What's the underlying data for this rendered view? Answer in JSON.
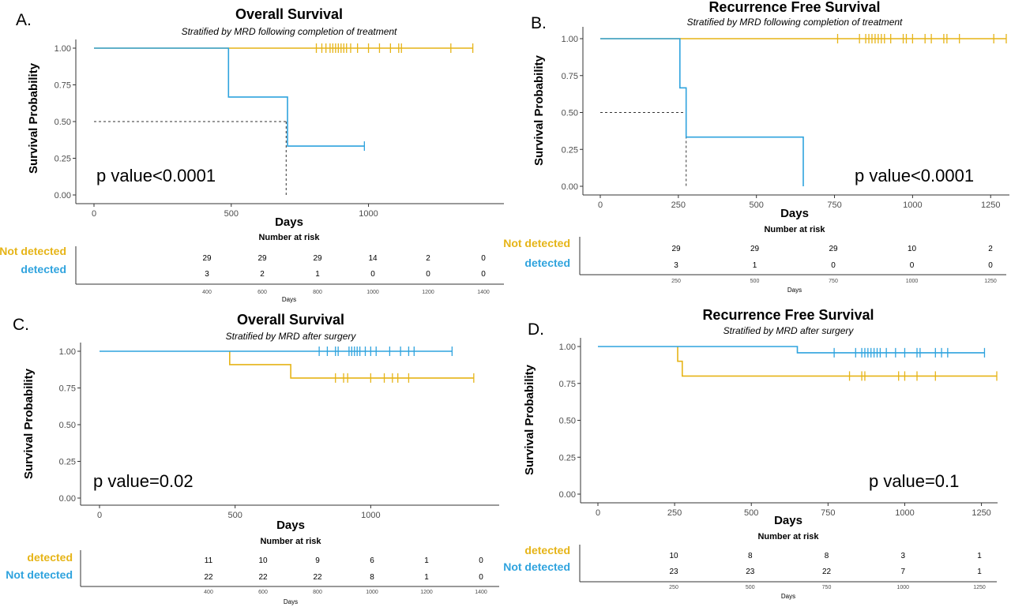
{
  "colors": {
    "not_detected_ad": "#E6B417",
    "detected_ad": "#2FA3DE",
    "blue": "#2FA3DE",
    "gold": "#E6B417"
  },
  "chart_data": [
    {
      "id": "A",
      "panel_letter": "A.",
      "type": "line",
      "title": "Overall Survival",
      "subtitle": "Stratified by MRD following completion of treatment",
      "xlabel": "Days",
      "ylabel": "Survival Probability",
      "xlim": [
        0,
        1430
      ],
      "ylim": [
        0,
        1
      ],
      "xticks": [
        0,
        500,
        1000
      ],
      "yticks": [
        0.0,
        0.25,
        0.5,
        0.75,
        1.0
      ],
      "pvalue": "p value<0.0001",
      "median_line": {
        "x": 700,
        "y": 0.5
      },
      "series": [
        {
          "name": "Not detected",
          "color": "#E6B417",
          "steps": [
            [
              0,
              1.0
            ],
            [
              1380,
              1.0
            ]
          ],
          "censor": [
            [
              810,
              1.0
            ],
            [
              830,
              1.0
            ],
            [
              845,
              1.0
            ],
            [
              860,
              1.0
            ],
            [
              870,
              1.0
            ],
            [
              880,
              1.0
            ],
            [
              890,
              1.0
            ],
            [
              900,
              1.0
            ],
            [
              910,
              1.0
            ],
            [
              920,
              1.0
            ],
            [
              935,
              1.0
            ],
            [
              960,
              1.0
            ],
            [
              1000,
              1.0
            ],
            [
              1040,
              1.0
            ],
            [
              1080,
              1.0
            ],
            [
              1110,
              1.0
            ],
            [
              1120,
              1.0
            ],
            [
              1300,
              1.0
            ],
            [
              1380,
              1.0
            ]
          ]
        },
        {
          "name": "detected",
          "color": "#2FA3DE",
          "steps": [
            [
              0,
              1.0
            ],
            [
              490,
              1.0
            ],
            [
              490,
              0.667
            ],
            [
              705,
              0.667
            ],
            [
              705,
              0.333
            ],
            [
              985,
              0.333
            ]
          ],
          "censor": [
            [
              985,
              0.333
            ]
          ]
        }
      ],
      "risk_table": {
        "title": "Number at risk",
        "labels": [
          "Not detected",
          "detected"
        ],
        "xticks": [
          400,
          600,
          800,
          1000,
          1200,
          1400
        ],
        "xlabel": "Days",
        "rows": [
          [
            29,
            29,
            29,
            14,
            2,
            0
          ],
          [
            3,
            2,
            1,
            0,
            0,
            0
          ]
        ]
      }
    },
    {
      "id": "B",
      "panel_letter": "B.",
      "type": "line",
      "title": "Recurrence Free Survival",
      "subtitle": "Stratified by MRD following completion of treatment",
      "xlabel": "Days",
      "ylabel": "Survival Probability",
      "xlim": [
        0,
        1300
      ],
      "ylim": [
        0,
        1
      ],
      "xticks": [
        0,
        250,
        500,
        750,
        1000,
        1250
      ],
      "yticks": [
        0.0,
        0.25,
        0.5,
        0.75,
        1.0
      ],
      "pvalue": "p value<0.0001",
      "median_line": {
        "x": 275,
        "y": 0.5
      },
      "series": [
        {
          "name": "Not detected",
          "color": "#E6B417",
          "steps": [
            [
              0,
              1.0
            ],
            [
              1300,
              1.0
            ]
          ],
          "censor": [
            [
              760,
              1.0
            ],
            [
              830,
              1.0
            ],
            [
              850,
              1.0
            ],
            [
              860,
              1.0
            ],
            [
              870,
              1.0
            ],
            [
              880,
              1.0
            ],
            [
              890,
              1.0
            ],
            [
              900,
              1.0
            ],
            [
              910,
              1.0
            ],
            [
              930,
              1.0
            ],
            [
              970,
              1.0
            ],
            [
              980,
              1.0
            ],
            [
              1000,
              1.0
            ],
            [
              1040,
              1.0
            ],
            [
              1060,
              1.0
            ],
            [
              1100,
              1.0
            ],
            [
              1110,
              1.0
            ],
            [
              1150,
              1.0
            ],
            [
              1260,
              1.0
            ],
            [
              1300,
              1.0
            ]
          ]
        },
        {
          "name": "detected",
          "color": "#2FA3DE",
          "steps": [
            [
              0,
              1.0
            ],
            [
              255,
              1.0
            ],
            [
              255,
              0.667
            ],
            [
              275,
              0.667
            ],
            [
              275,
              0.333
            ],
            [
              650,
              0.333
            ],
            [
              650,
              0.0
            ]
          ],
          "censor": []
        }
      ],
      "risk_table": {
        "title": "Number at risk",
        "labels": [
          "Not detected",
          "detected"
        ],
        "xticks": [
          250,
          500,
          750,
          1000,
          1250
        ],
        "xlabel": "Days",
        "rows": [
          [
            29,
            29,
            29,
            10,
            2
          ],
          [
            3,
            1,
            0,
            0,
            0
          ]
        ]
      }
    },
    {
      "id": "C",
      "panel_letter": "C.",
      "type": "line",
      "title": "Overall Survival",
      "subtitle": "Stratified by MRD after surgery",
      "xlabel": "Days",
      "ylabel": "Survival Probability",
      "xlim": [
        0,
        1430
      ],
      "ylim": [
        0,
        1
      ],
      "xticks": [
        0,
        500,
        1000
      ],
      "yticks": [
        0.0,
        0.25,
        0.5,
        0.75,
        1.0
      ],
      "pvalue": "p value=0.02",
      "series": [
        {
          "name": "detected",
          "color": "#E6B417",
          "steps": [
            [
              480,
              1.0
            ],
            [
              480,
              0.909
            ],
            [
              705,
              0.909
            ],
            [
              705,
              0.818
            ],
            [
              1380,
              0.818
            ]
          ],
          "censor": [
            [
              870,
              0.818
            ],
            [
              900,
              0.818
            ],
            [
              915,
              0.818
            ],
            [
              1000,
              0.818
            ],
            [
              1050,
              0.818
            ],
            [
              1080,
              0.818
            ],
            [
              1100,
              0.818
            ],
            [
              1140,
              0.818
            ],
            [
              1380,
              0.818
            ]
          ]
        },
        {
          "name": "Not detected",
          "color": "#2FA3DE",
          "steps": [
            [
              0,
              1.0
            ],
            [
              1300,
              1.0
            ]
          ],
          "censor": [
            [
              810,
              1.0
            ],
            [
              840,
              1.0
            ],
            [
              870,
              1.0
            ],
            [
              880,
              1.0
            ],
            [
              920,
              1.0
            ],
            [
              930,
              1.0
            ],
            [
              940,
              1.0
            ],
            [
              950,
              1.0
            ],
            [
              960,
              1.0
            ],
            [
              980,
              1.0
            ],
            [
              1000,
              1.0
            ],
            [
              1020,
              1.0
            ],
            [
              1070,
              1.0
            ],
            [
              1110,
              1.0
            ],
            [
              1140,
              1.0
            ],
            [
              1160,
              1.0
            ],
            [
              1300,
              1.0
            ]
          ]
        }
      ],
      "risk_table": {
        "title": "Number at risk",
        "labels": [
          "detected",
          "Not detected"
        ],
        "xticks": [
          400,
          600,
          800,
          1000,
          1200,
          1400
        ],
        "xlabel": "Days",
        "rows": [
          [
            11,
            10,
            9,
            6,
            1,
            0
          ],
          [
            22,
            22,
            22,
            8,
            1,
            0
          ]
        ]
      }
    },
    {
      "id": "D",
      "panel_letter": "D.",
      "type": "line",
      "title": "Recurrence Free Survival",
      "subtitle": "Stratified by MRD after surgery",
      "xlabel": "Days",
      "ylabel": "Survival Probability",
      "xlim": [
        0,
        1300
      ],
      "ylim": [
        0,
        1
      ],
      "xticks": [
        0,
        250,
        500,
        750,
        1000,
        1250
      ],
      "yticks": [
        0.0,
        0.25,
        0.5,
        0.75,
        1.0
      ],
      "pvalue": "p value=0.1",
      "series": [
        {
          "name": "detected",
          "color": "#E6B417",
          "steps": [
            [
              260,
              1.0
            ],
            [
              260,
              0.9
            ],
            [
              275,
              0.9
            ],
            [
              275,
              0.8
            ],
            [
              1300,
              0.8
            ]
          ],
          "censor": [
            [
              820,
              0.8
            ],
            [
              860,
              0.8
            ],
            [
              870,
              0.8
            ],
            [
              980,
              0.8
            ],
            [
              1000,
              0.8
            ],
            [
              1040,
              0.8
            ],
            [
              1100,
              0.8
            ],
            [
              1300,
              0.8
            ]
          ]
        },
        {
          "name": "Not detected",
          "color": "#2FA3DE",
          "steps": [
            [
              0,
              1.0
            ],
            [
              650,
              1.0
            ],
            [
              650,
              0.958
            ],
            [
              1260,
              0.958
            ]
          ],
          "censor": [
            [
              770,
              0.958
            ],
            [
              840,
              0.958
            ],
            [
              860,
              0.958
            ],
            [
              870,
              0.958
            ],
            [
              880,
              0.958
            ],
            [
              890,
              0.958
            ],
            [
              900,
              0.958
            ],
            [
              910,
              0.958
            ],
            [
              920,
              0.958
            ],
            [
              940,
              0.958
            ],
            [
              970,
              0.958
            ],
            [
              1000,
              0.958
            ],
            [
              1040,
              0.958
            ],
            [
              1050,
              0.958
            ],
            [
              1100,
              0.958
            ],
            [
              1120,
              0.958
            ],
            [
              1140,
              0.958
            ],
            [
              1260,
              0.958
            ]
          ]
        }
      ],
      "risk_table": {
        "title": "Number at risk",
        "labels": [
          "detected",
          "Not detected"
        ],
        "xticks": [
          250,
          500,
          750,
          1000,
          1250
        ],
        "xlabel": "Days",
        "rows": [
          [
            10,
            8,
            8,
            3,
            1
          ],
          [
            23,
            23,
            22,
            7,
            1
          ]
        ]
      }
    }
  ]
}
